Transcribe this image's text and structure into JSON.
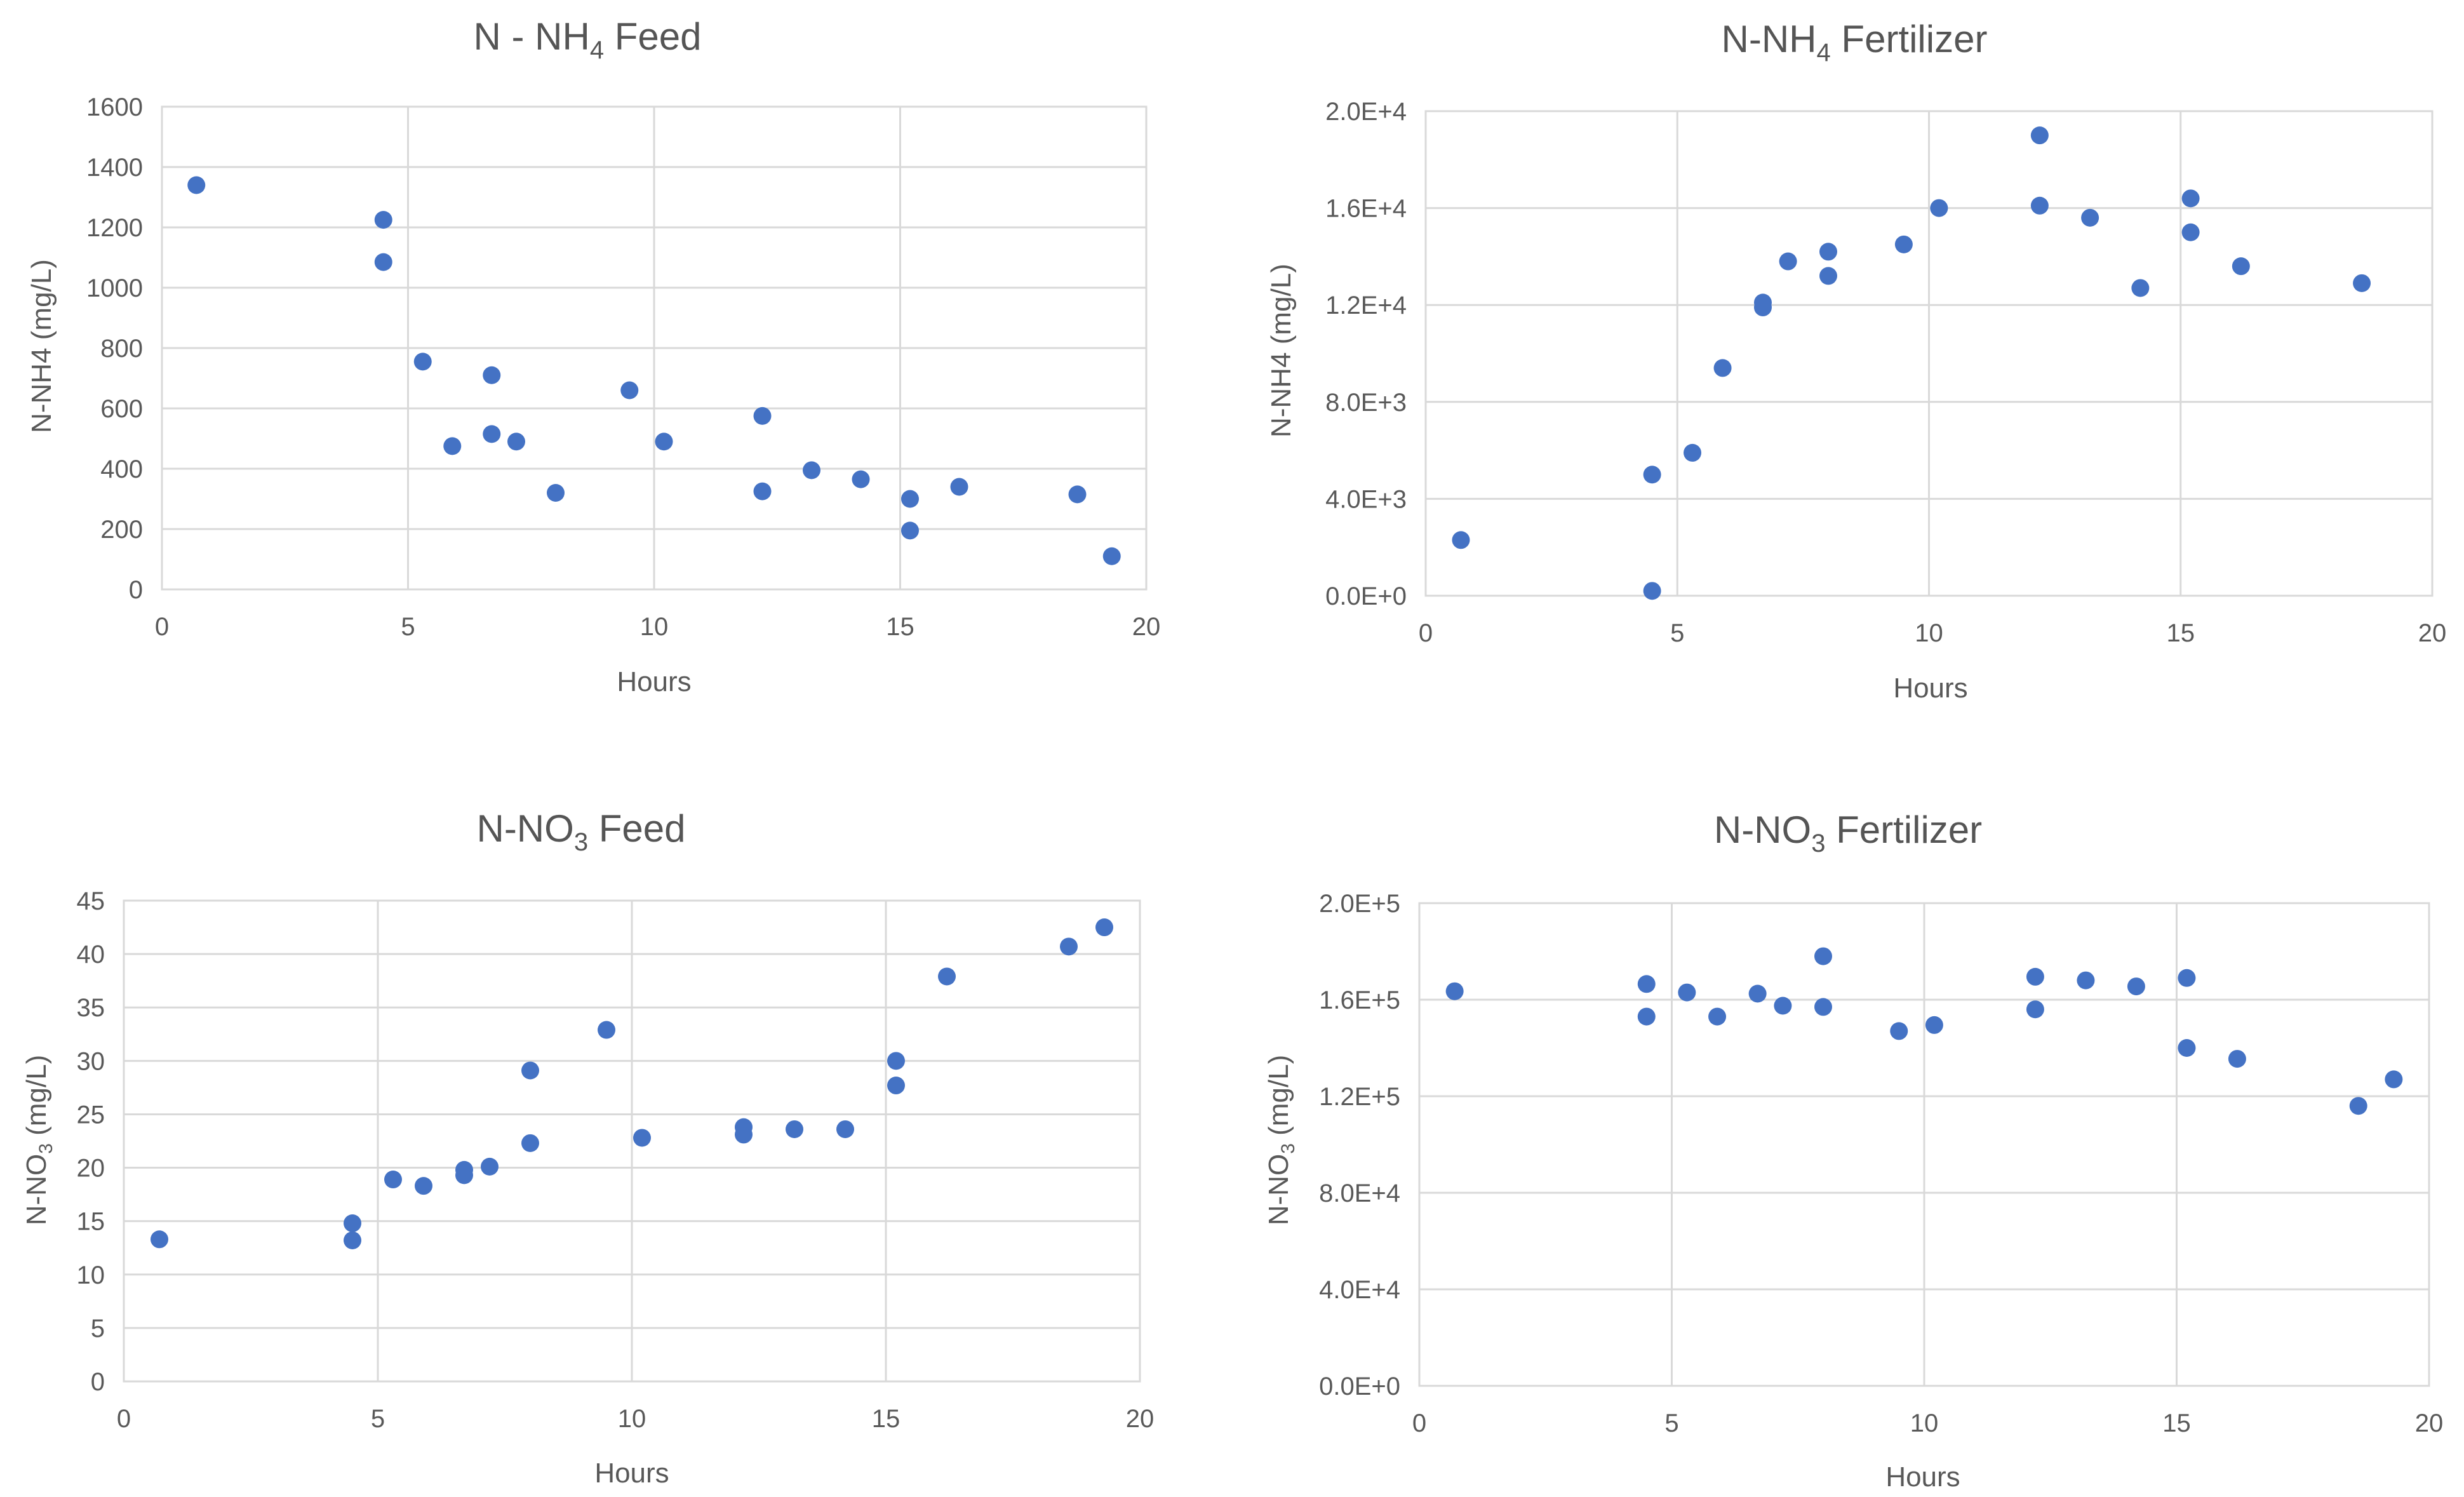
{
  "chart_data": [
    {
      "id": "nh4-feed",
      "type": "scatter",
      "title_main": "N - NH",
      "title_sub": "4",
      "title_tail": " Feed",
      "xlabel": "Hours",
      "ylabel": "N-NH4 (mg/L)",
      "xlim": [
        0,
        20
      ],
      "ylim": [
        0,
        1600
      ],
      "xticks": [
        "0",
        "5",
        "10",
        "15",
        "20"
      ],
      "yticks": [
        "0",
        "200",
        "400",
        "600",
        "800",
        "1000",
        "1200",
        "1400",
        "1600"
      ],
      "color": "#4472c4",
      "x": [
        0.7,
        4.5,
        4.5,
        5.3,
        5.9,
        6.7,
        6.7,
        7.2,
        8.0,
        9.5,
        10.2,
        12.2,
        12.2,
        13.2,
        14.2,
        15.2,
        15.2,
        16.2,
        18.6,
        19.3
      ],
      "y": [
        1340,
        1225,
        1085,
        755,
        475,
        710,
        515,
        490,
        320,
        660,
        490,
        575,
        325,
        395,
        365,
        300,
        195,
        340,
        315,
        110
      ]
    },
    {
      "id": "nh4-fertilizer",
      "type": "scatter",
      "title_main": "N-NH",
      "title_sub": "4",
      "title_tail": " Fertilizer",
      "xlabel": "Hours",
      "ylabel": "N-NH4 (mg/L)",
      "xlim": [
        0,
        20
      ],
      "ylim": [
        0,
        20000
      ],
      "xticks": [
        "0",
        "5",
        "10",
        "15",
        "20"
      ],
      "yticks": [
        "0.0E+0",
        "4.0E+3",
        "8.0E+3",
        "1.2E+4",
        "1.6E+4",
        "2.0E+4"
      ],
      "color": "#4472c4",
      "x": [
        0.7,
        4.5,
        4.5,
        5.3,
        5.9,
        6.7,
        6.7,
        7.2,
        8.0,
        8.0,
        9.5,
        10.2,
        12.2,
        12.2,
        13.2,
        14.2,
        15.2,
        15.2,
        16.2,
        18.6
      ],
      "y": [
        2300,
        200,
        5000,
        5900,
        9400,
        11900,
        12100,
        13800,
        14200,
        13200,
        14500,
        16000,
        19000,
        16100,
        15600,
        12700,
        16400,
        15000,
        13600,
        12900
      ]
    },
    {
      "id": "no3-feed",
      "type": "scatter",
      "title_main": "N-NO",
      "title_sub": "3",
      "title_tail": " Feed",
      "xlabel": "Hours",
      "ylabel_main": "N-NO",
      "ylabel_sub": "3",
      "ylabel_tail": " (mg/L)",
      "xlim": [
        0,
        20
      ],
      "ylim": [
        0,
        45
      ],
      "xticks": [
        "0",
        "5",
        "10",
        "15",
        "20"
      ],
      "yticks": [
        "0",
        "5",
        "10",
        "15",
        "20",
        "25",
        "30",
        "35",
        "40",
        "45"
      ],
      "color": "#4472c4",
      "x": [
        0.7,
        4.5,
        4.5,
        5.3,
        5.9,
        6.7,
        6.7,
        7.2,
        8.0,
        8.0,
        9.5,
        10.2,
        12.2,
        12.2,
        13.2,
        14.2,
        15.2,
        15.2,
        16.2,
        18.6,
        19.3
      ],
      "y": [
        13.3,
        14.8,
        13.2,
        18.9,
        18.3,
        19.8,
        19.3,
        20.1,
        22.3,
        29.1,
        32.9,
        22.8,
        23.8,
        23.1,
        23.6,
        23.6,
        30.0,
        27.7,
        37.9,
        40.7,
        42.5
      ]
    },
    {
      "id": "no3-fertilizer",
      "type": "scatter",
      "title_main": "N-NO",
      "title_sub": "3",
      "title_tail": " Fertilizer",
      "xlabel": "Hours",
      "ylabel_main": "N-NO",
      "ylabel_sub": "3",
      "ylabel_tail": " (mg/L)",
      "xlim": [
        0,
        20
      ],
      "ylim": [
        0,
        200000
      ],
      "xticks": [
        "0",
        "5",
        "10",
        "15",
        "20"
      ],
      "yticks": [
        "0.0E+0",
        "4.0E+4",
        "8.0E+4",
        "1.2E+5",
        "1.6E+5",
        "2.0E+5"
      ],
      "color": "#4472c4",
      "x": [
        0.7,
        4.5,
        4.5,
        5.3,
        5.9,
        6.7,
        7.2,
        8.0,
        8.0,
        9.5,
        10.2,
        12.2,
        12.2,
        13.2,
        14.2,
        15.2,
        15.2,
        16.2,
        18.6,
        19.3
      ],
      "y": [
        163500,
        166500,
        153000,
        163000,
        153000,
        162500,
        157500,
        178000,
        157000,
        147000,
        149500,
        169500,
        156000,
        168000,
        165500,
        169000,
        140000,
        135500,
        116000,
        127000
      ]
    }
  ]
}
